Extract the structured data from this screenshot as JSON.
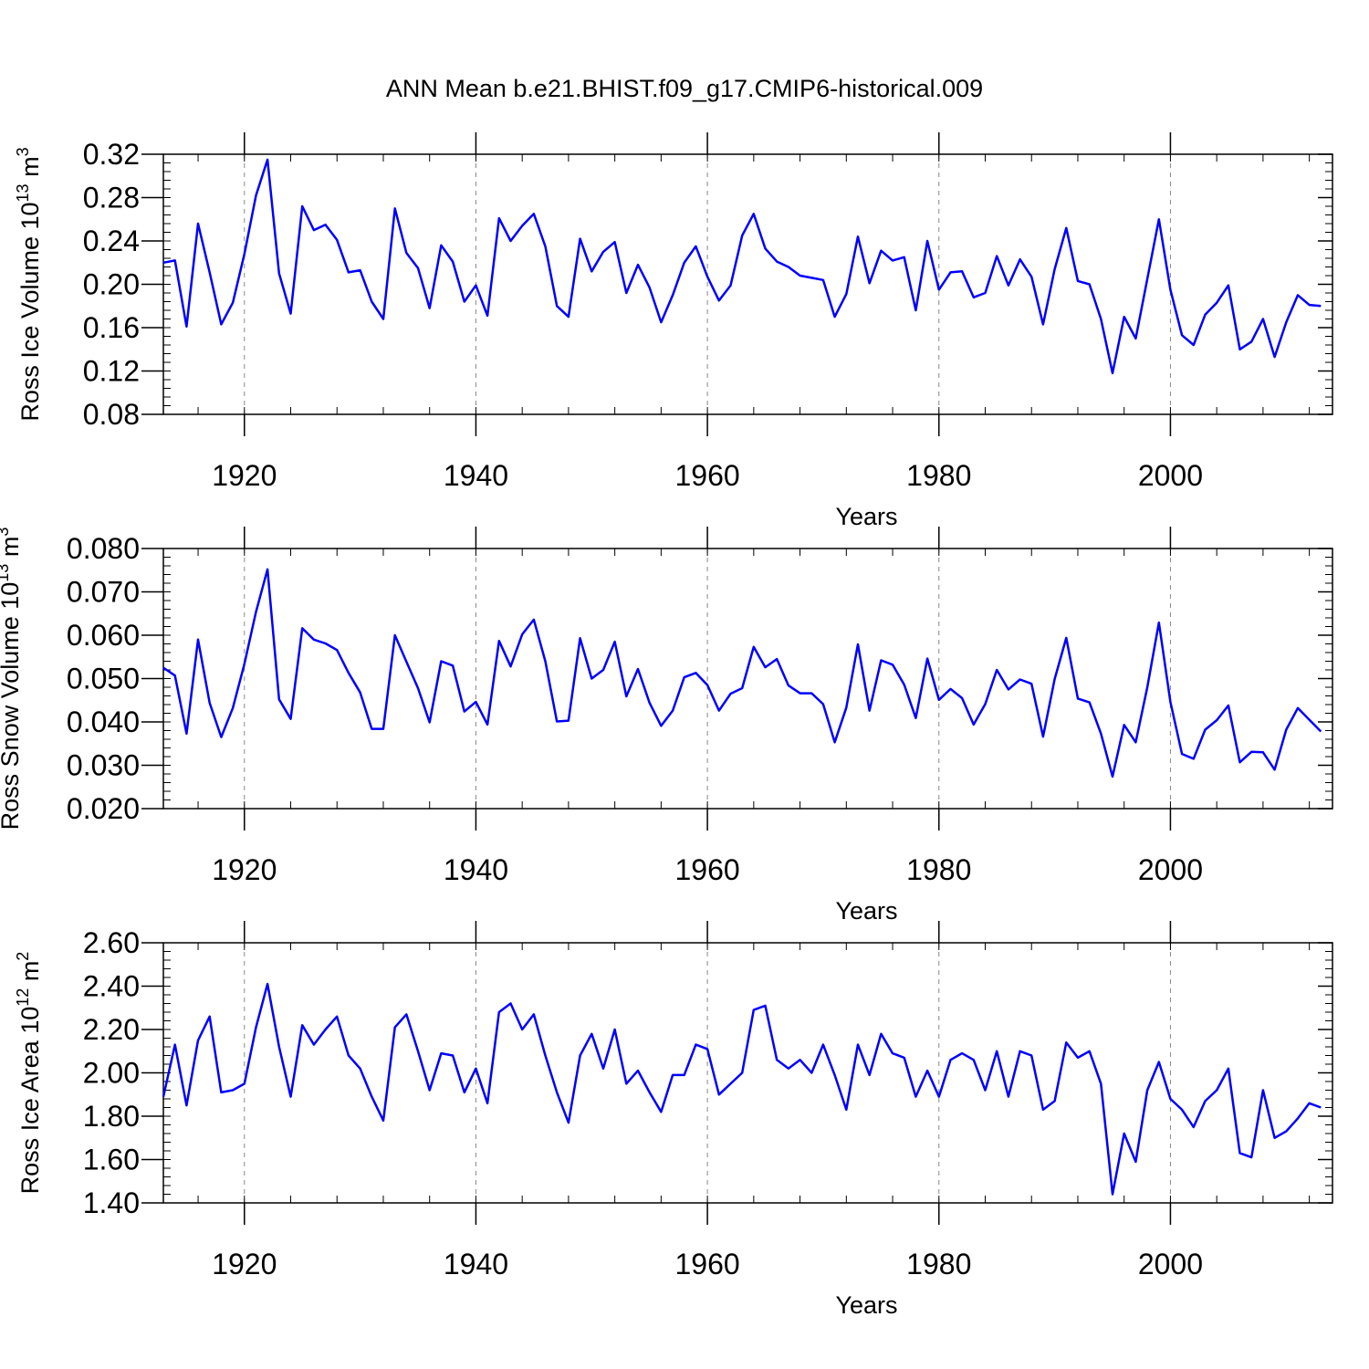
{
  "figure": {
    "title": "ANN Mean b.e21.BHIST.f09_g17.CMIP6-historical.009",
    "line_color": "#0000ff"
  },
  "chart_data": [
    {
      "type": "line",
      "ylabel_main": "Ross Ice Volume 10",
      "ylabel_exp": "13",
      "ylabel_unit": " m",
      "ylabel_unit_exp": "3",
      "xlabel": "Years",
      "xlim": [
        1913,
        2014
      ],
      "ylim": [
        0.08,
        0.32
      ],
      "yticks": [
        0.08,
        0.12,
        0.16,
        0.2,
        0.24,
        0.28,
        0.32
      ],
      "ytick_labels": [
        "0.08",
        "0.12",
        "0.16",
        "0.20",
        "0.24",
        "0.28",
        "0.32"
      ],
      "xticks": [
        1920,
        1940,
        1960,
        1980,
        2000
      ],
      "xtick_labels": [
        "1920",
        "1940",
        "1960",
        "1980",
        "2000"
      ],
      "x_start": 1913,
      "values": [
        0.22,
        0.222,
        0.161,
        0.256,
        0.211,
        0.163,
        0.183,
        0.228,
        0.282,
        0.315,
        0.21,
        0.173,
        0.272,
        0.25,
        0.255,
        0.241,
        0.211,
        0.213,
        0.184,
        0.168,
        0.27,
        0.229,
        0.215,
        0.178,
        0.236,
        0.221,
        0.184,
        0.199,
        0.171,
        0.261,
        0.24,
        0.254,
        0.265,
        0.235,
        0.18,
        0.17,
        0.242,
        0.212,
        0.23,
        0.239,
        0.192,
        0.218,
        0.197,
        0.165,
        0.19,
        0.22,
        0.235,
        0.207,
        0.185,
        0.199,
        0.245,
        0.265,
        0.233,
        0.221,
        0.216,
        0.208,
        0.206,
        0.204,
        0.17,
        0.191,
        0.244,
        0.201,
        0.231,
        0.222,
        0.225,
        0.176,
        0.24,
        0.195,
        0.211,
        0.212,
        0.188,
        0.192,
        0.226,
        0.199,
        0.223,
        0.207,
        0.163,
        0.214,
        0.252,
        0.203,
        0.2,
        0.168,
        0.118,
        0.17,
        0.15,
        0.205,
        0.26,
        0.195,
        0.153,
        0.144,
        0.172,
        0.183,
        0.199,
        0.14,
        0.147,
        0.168,
        0.133,
        0.165,
        0.19,
        0.181,
        0.18
      ]
    },
    {
      "type": "line",
      "ylabel_main": "Ross Snow Volume 10",
      "ylabel_exp": "13",
      "ylabel_unit": " m",
      "ylabel_unit_exp": "3",
      "xlabel": "Years",
      "xlim": [
        1913,
        2014
      ],
      "ylim": [
        0.02,
        0.08
      ],
      "yticks": [
        0.02,
        0.03,
        0.04,
        0.05,
        0.06,
        0.07,
        0.08
      ],
      "ytick_labels": [
        "0.020",
        "0.030",
        "0.040",
        "0.050",
        "0.060",
        "0.070",
        "0.080"
      ],
      "xticks": [
        1920,
        1940,
        1960,
        1980,
        2000
      ],
      "xtick_labels": [
        "1920",
        "1940",
        "1960",
        "1980",
        "2000"
      ],
      "x_start": 1913,
      "values": [
        0.0525,
        0.0507,
        0.0373,
        0.059,
        0.0444,
        0.0365,
        0.0432,
        0.0534,
        0.0654,
        0.0752,
        0.0452,
        0.0407,
        0.0616,
        0.059,
        0.0581,
        0.0566,
        0.0513,
        0.0468,
        0.0384,
        0.0384,
        0.06,
        0.0539,
        0.0478,
        0.0399,
        0.054,
        0.053,
        0.0424,
        0.0446,
        0.0394,
        0.0587,
        0.0528,
        0.0602,
        0.0636,
        0.054,
        0.0401,
        0.0403,
        0.0593,
        0.05,
        0.052,
        0.0585,
        0.0459,
        0.0522,
        0.0444,
        0.0391,
        0.0426,
        0.0503,
        0.0513,
        0.0485,
        0.0426,
        0.0465,
        0.0478,
        0.0573,
        0.0526,
        0.0545,
        0.0484,
        0.0466,
        0.0466,
        0.0441,
        0.0353,
        0.0433,
        0.0579,
        0.0426,
        0.0542,
        0.0532,
        0.0486,
        0.0409,
        0.0546,
        0.0451,
        0.0476,
        0.0455,
        0.0394,
        0.0441,
        0.052,
        0.0475,
        0.0498,
        0.0488,
        0.0366,
        0.0499,
        0.0594,
        0.0454,
        0.0445,
        0.0373,
        0.0274,
        0.0393,
        0.0353,
        0.048,
        0.0629,
        0.0446,
        0.0326,
        0.0315,
        0.0382,
        0.0404,
        0.0438,
        0.0307,
        0.0331,
        0.033,
        0.029,
        0.0382,
        0.0432,
        0.0405,
        0.0378
      ]
    },
    {
      "type": "line",
      "ylabel_main": "Ross Ice Area 10",
      "ylabel_exp": "12",
      "ylabel_unit": " m",
      "ylabel_unit_exp": "2",
      "xlabel": "Years",
      "xlim": [
        1913,
        2014
      ],
      "ylim": [
        1.4,
        2.6
      ],
      "yticks": [
        1.4,
        1.6,
        1.8,
        2.0,
        2.2,
        2.4,
        2.6
      ],
      "ytick_labels": [
        "1.40",
        "1.60",
        "1.80",
        "2.00",
        "2.20",
        "2.40",
        "2.60"
      ],
      "xticks": [
        1920,
        1940,
        1960,
        1980,
        2000
      ],
      "xtick_labels": [
        "1920",
        "1940",
        "1960",
        "1980",
        "2000"
      ],
      "x_start": 1913,
      "values": [
        1.89,
        2.13,
        1.85,
        2.15,
        2.26,
        1.91,
        1.92,
        1.95,
        2.21,
        2.41,
        2.12,
        1.89,
        2.22,
        2.13,
        2.2,
        2.26,
        2.08,
        2.02,
        1.89,
        1.78,
        2.21,
        2.27,
        2.1,
        1.92,
        2.09,
        2.08,
        1.91,
        2.02,
        1.86,
        2.28,
        2.32,
        2.2,
        2.27,
        2.08,
        1.91,
        1.77,
        2.08,
        2.18,
        2.02,
        2.2,
        1.95,
        2.01,
        1.91,
        1.82,
        1.99,
        1.99,
        2.13,
        2.11,
        1.9,
        1.95,
        2.0,
        2.29,
        2.31,
        2.06,
        2.02,
        2.06,
        2.0,
        2.13,
        1.99,
        1.83,
        2.13,
        1.99,
        2.18,
        2.09,
        2.07,
        1.89,
        2.01,
        1.89,
        2.06,
        2.09,
        2.06,
        1.92,
        2.1,
        1.89,
        2.1,
        2.08,
        1.83,
        1.87,
        2.14,
        2.07,
        2.1,
        1.95,
        1.44,
        1.72,
        1.59,
        1.92,
        2.05,
        1.88,
        1.83,
        1.75,
        1.87,
        1.92,
        2.02,
        1.63,
        1.61,
        1.92,
        1.7,
        1.73,
        1.79,
        1.86,
        1.84
      ]
    }
  ]
}
